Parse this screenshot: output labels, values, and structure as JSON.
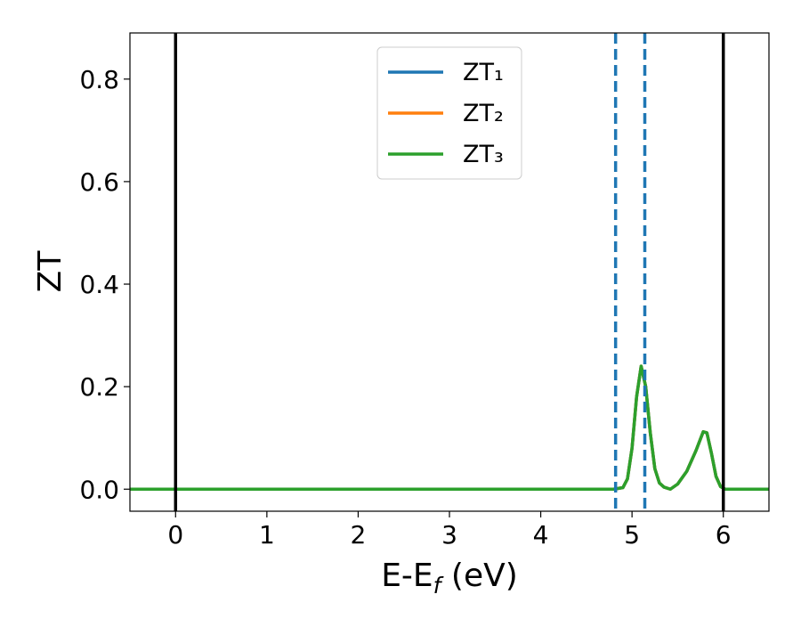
{
  "chart_data": {
    "type": "line",
    "xlabel": [
      "E-E",
      "f",
      " (eV)"
    ],
    "ylabel": "ZT",
    "x": [
      -0.5,
      4.8,
      4.9,
      4.95,
      5.0,
      5.05,
      5.1,
      5.15,
      5.2,
      5.25,
      5.3,
      5.35,
      5.42,
      5.5,
      5.6,
      5.7,
      5.78,
      5.82,
      5.87,
      5.92,
      5.97,
      6.02,
      6.5
    ],
    "series": [
      {
        "name": "ZT₁",
        "color": "#1f77b4",
        "values": [
          0,
          0,
          0.003,
          0.02,
          0.08,
          0.18,
          0.24,
          0.2,
          0.11,
          0.04,
          0.012,
          0.004,
          0,
          0.01,
          0.035,
          0.075,
          0.112,
          0.11,
          0.07,
          0.025,
          0.005,
          0,
          0
        ]
      },
      {
        "name": "ZT₂",
        "color": "#ff7f0e",
        "values": [
          0,
          0,
          0.003,
          0.02,
          0.08,
          0.18,
          0.24,
          0.2,
          0.11,
          0.04,
          0.012,
          0.004,
          0,
          0.01,
          0.035,
          0.075,
          0.112,
          0.11,
          0.07,
          0.025,
          0.005,
          0,
          0
        ]
      },
      {
        "name": "ZT₃",
        "color": "#2ca02c",
        "values": [
          0,
          0,
          0.003,
          0.02,
          0.08,
          0.18,
          0.24,
          0.2,
          0.11,
          0.04,
          0.012,
          0.004,
          0,
          0.01,
          0.035,
          0.075,
          0.112,
          0.11,
          0.07,
          0.025,
          0.005,
          0,
          0
        ]
      }
    ],
    "vlines": [
      {
        "x": 0,
        "color": "#000000",
        "dashed": false
      },
      {
        "x": 6,
        "color": "#000000",
        "dashed": false
      },
      {
        "x": 4.82,
        "color": "#1f77b4",
        "dashed": true
      },
      {
        "x": 5.14,
        "color": "#1f77b4",
        "dashed": true
      }
    ],
    "xlim": [
      -0.5,
      6.5
    ],
    "xticks": [
      0,
      1,
      2,
      3,
      4,
      5,
      6
    ],
    "ylim": [
      -0.043,
      0.89
    ],
    "yticks": [
      {
        "value": 0,
        "label": "0.0"
      },
      0.2,
      0.4,
      0.6,
      0.8
    ],
    "legend": "upper center",
    "grid": false
  }
}
